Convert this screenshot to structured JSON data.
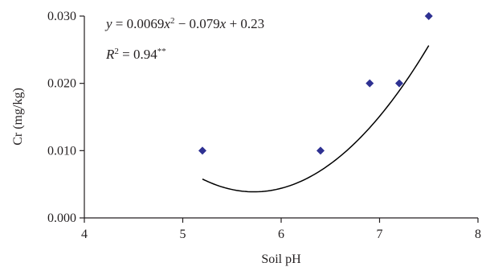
{
  "chart_data": {
    "type": "scatter",
    "xlabel": "Soil pH",
    "ylabel": "Cr (mg/kg)",
    "xlim": [
      4,
      8
    ],
    "ylim": [
      0,
      0.03
    ],
    "x_ticks": [
      "4",
      "5",
      "6",
      "7",
      "8"
    ],
    "y_ticks": [
      "0.000",
      "0.010",
      "0.020",
      "0.030"
    ],
    "grid": false,
    "legend": "none",
    "marker_color": "#2e3192",
    "series": [
      {
        "points": [
          {
            "x": 5.2,
            "y": 0.01
          },
          {
            "x": 6.4,
            "y": 0.01
          },
          {
            "x": 6.9,
            "y": 0.02
          },
          {
            "x": 7.2,
            "y": 0.02
          },
          {
            "x": 7.5,
            "y": 0.03
          }
        ]
      }
    ],
    "trendline": {
      "type": "polynomial",
      "coefficients": [
        0.0069,
        -0.079,
        0.23
      ],
      "x_range": [
        5.2,
        7.5
      ]
    },
    "annotations": {
      "equation": {
        "y": "y",
        "eq": " = 0.0069",
        "x1": "x",
        "sup2": "2",
        "minus": " − 0.079",
        "x2": "x",
        "plus": " + 0.23"
      },
      "r2": {
        "R": "R",
        "sup2": "2",
        "value": " = 0.94",
        "stars": "**"
      }
    }
  }
}
